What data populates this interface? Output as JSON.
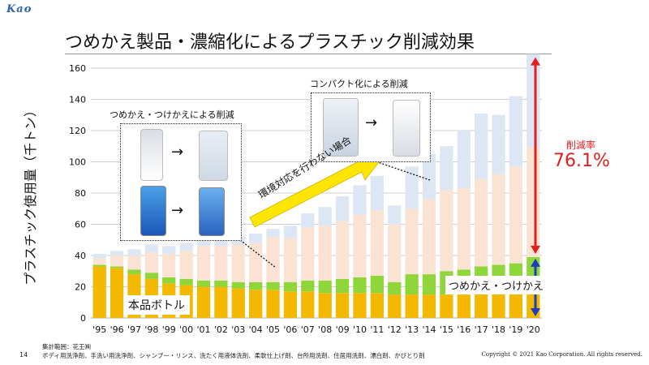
{
  "header": {
    "logo": "Kao",
    "title": "つめかえ製品・濃縮化によるプラスチック削減効果"
  },
  "footer": {
    "scope_label": "集計範囲：花王㈱",
    "scope_items": "ボディ用洗浄剤、手洗い用洗浄剤、シャンプー・リンス、洗たく用液体洗剤、柔軟仕上げ剤、台所用洗剤、住居用洗剤、漂白剤、かびとり剤",
    "page": "14",
    "copyright": "Copyright © 2021 Kao Corporation. All rights reserved."
  },
  "annotations": {
    "refill_box_title": "つめかえ・つけかえによる削減",
    "compact_box_title": "コンパクト化による削減",
    "no_action_label": "環境対応を行わない場合",
    "bottle_label": "本品ボトル",
    "refill_label": "つめかえ・つけかえ",
    "reduction_rate_label": "削減率",
    "reduction_rate_value": "76.1%"
  },
  "colors": {
    "bottle": "#f5b800",
    "refill": "#8fd63a",
    "compact_saving": "#fbe3d3",
    "refill_saving": "#dde6f4",
    "grid": "#bfbfbf",
    "accent_red": "#e02020",
    "accent_blue": "#1f3db8"
  },
  "chart_data": {
    "type": "bar",
    "stacked": true,
    "ylabel": "プラスチック使用量（千トン）",
    "ylim": [
      0,
      160
    ],
    "yticks": [
      0,
      20,
      40,
      60,
      80,
      100,
      120,
      140,
      160
    ],
    "grid": true,
    "categories": [
      "'95",
      "'96",
      "'97",
      "'98",
      "'99",
      "'00",
      "'01",
      "'02",
      "'03",
      "'04",
      "'05",
      "'06",
      "'07",
      "'08",
      "'09",
      "'10",
      "'11",
      "'12",
      "'13",
      "'14",
      "'15",
      "'16",
      "'17",
      "'18",
      "'19",
      "'20"
    ],
    "series": [
      {
        "name": "本品ボトル",
        "values": [
          33,
          32,
          28,
          25,
          22,
          21,
          20,
          20,
          19,
          18,
          18,
          17,
          17,
          16,
          16,
          16,
          16,
          15,
          15,
          15,
          15,
          15,
          16,
          16,
          16,
          17
        ]
      },
      {
        "name": "つめかえ・つけかえ",
        "values": [
          1,
          1,
          3,
          4,
          4,
          4,
          4,
          4,
          4,
          5,
          5,
          6,
          7,
          8,
          9,
          10,
          11,
          8,
          13,
          13,
          15,
          16,
          17,
          18,
          19,
          22
        ]
      },
      {
        "name": "",
        "values": [
          4,
          7,
          9,
          13,
          15,
          18,
          22,
          22,
          24,
          25,
          29,
          28,
          34,
          35,
          37,
          40,
          42,
          37,
          42,
          48,
          52,
          52,
          56,
          58,
          62,
          70
        ]
      },
      {
        "name": "",
        "values": [
          3,
          3,
          4,
          5,
          5,
          5,
          5,
          5,
          5,
          6,
          5,
          8,
          9,
          12,
          16,
          19,
          22,
          12,
          27,
          29,
          28,
          37,
          42,
          38,
          45,
          60
        ]
      }
    ],
    "bar_labels": {
      "bottle_series": "本品ボトル",
      "refill_series": "つめかえ・つけかえ"
    }
  }
}
